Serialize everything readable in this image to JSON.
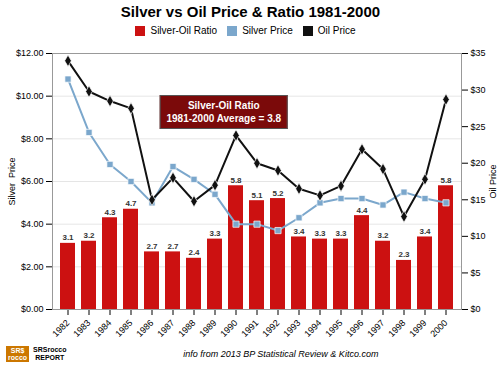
{
  "chart_data": {
    "type": "bar",
    "title": "Silver vs Oil Price & Ratio 1981-2000",
    "categories": [
      "1982",
      "1983",
      "1984",
      "1985",
      "1986",
      "1987",
      "1988",
      "1989",
      "1990",
      "1991",
      "1992",
      "1993",
      "1994",
      "1995",
      "1996",
      "1997",
      "1998",
      "1999",
      "2000"
    ],
    "series": [
      {
        "name": "Silver-Oil Ratio",
        "type": "bar",
        "color": "#CC1111",
        "data_labels": true,
        "values": [
          3.1,
          3.2,
          4.3,
          4.7,
          2.7,
          2.7,
          2.4,
          3.3,
          5.8,
          5.1,
          5.2,
          3.4,
          3.3,
          3.3,
          4.4,
          3.2,
          2.3,
          3.4,
          5.8
        ]
      },
      {
        "name": "Silver Price",
        "type": "line",
        "color": "#7BA7CC",
        "marker": "square",
        "values": [
          10.8,
          8.3,
          6.8,
          6.0,
          5.0,
          6.7,
          6.1,
          5.4,
          4.0,
          4.0,
          3.7,
          4.3,
          5.0,
          5.2,
          5.2,
          4.9,
          5.5,
          5.2,
          5.0
        ]
      },
      {
        "name": "Oil Price",
        "type": "line",
        "color": "#111111",
        "marker": "diamond",
        "axis": "y2",
        "values": [
          34.0,
          29.8,
          28.5,
          27.5,
          15.0,
          18.0,
          14.8,
          17.0,
          23.8,
          20.0,
          19.0,
          16.5,
          15.6,
          16.9,
          21.9,
          19.2,
          12.7,
          17.8,
          28.7
        ]
      }
    ],
    "ylabel": "Silver  Price",
    "y2label": "Oil Price",
    "ylim": [
      0,
      12
    ],
    "yticks": [
      {
        "value": 0,
        "label": "$0.00"
      },
      {
        "value": 2,
        "label": "$2.00"
      },
      {
        "value": 4,
        "label": "$4.00"
      },
      {
        "value": 6,
        "label": "$6.00"
      },
      {
        "value": 8,
        "label": "$8.00"
      },
      {
        "value": 10,
        "label": "$10.00"
      },
      {
        "value": 12,
        "label": "$12.00"
      }
    ],
    "y2lim": [
      0,
      35
    ],
    "y2ticks": [
      {
        "value": 0,
        "label": "$0"
      },
      {
        "value": 5,
        "label": "$5"
      },
      {
        "value": 10,
        "label": "$10"
      },
      {
        "value": 15,
        "label": "$15"
      },
      {
        "value": 20,
        "label": "$20"
      },
      {
        "value": 25,
        "label": "$25"
      },
      {
        "value": 30,
        "label": "$30"
      },
      {
        "value": 35,
        "label": "$35"
      }
    ],
    "grid": true,
    "legend": "top",
    "annotations": [
      "Silver-Oil Ratio\n1981-2000 Average = 3.8"
    ],
    "footer": "info from 2013 BP Statistical Review & Kitco.com",
    "logo_text": [
      "SR$",
      "rocco",
      "SRSrocco",
      "REPORT"
    ]
  }
}
